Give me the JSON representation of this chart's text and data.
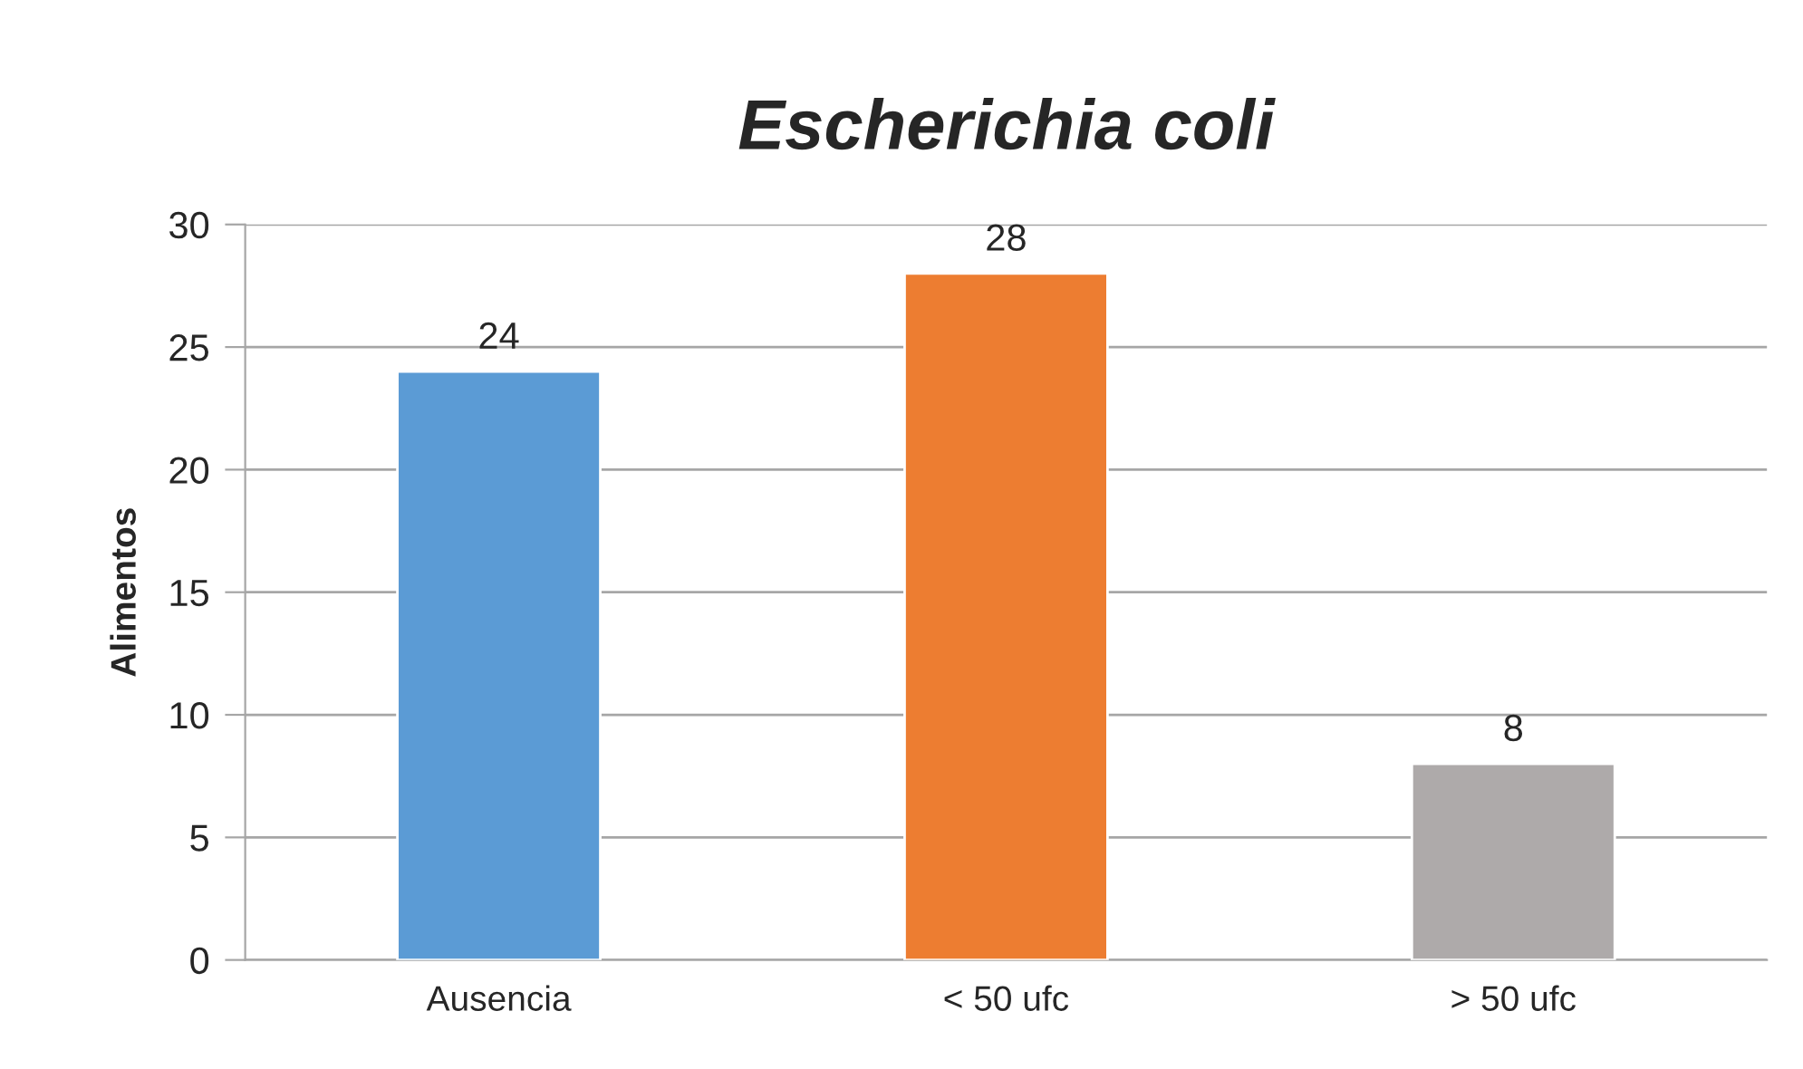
{
  "chart_data": {
    "type": "bar",
    "title": "Escherichia coli",
    "ylabel": "Alimentos",
    "categories": [
      "Ausencia",
      "< 50 ufc",
      "> 50 ufc"
    ],
    "values": [
      24,
      28,
      8
    ],
    "colors": [
      "#5b9bd5",
      "#ed7d31",
      "#aeaaaa"
    ],
    "ylim": [
      0,
      30
    ],
    "yticks": [
      0,
      5,
      10,
      15,
      20,
      25,
      30
    ],
    "grid": "y",
    "data_labels": true,
    "legend": false
  }
}
